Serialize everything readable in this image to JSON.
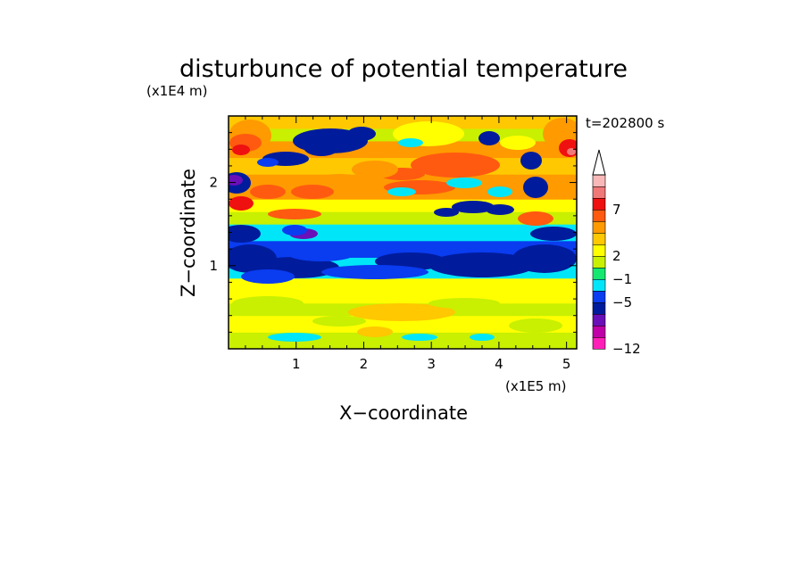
{
  "chart_data": {
    "type": "heatmap",
    "title": "disturbunce of potential temperature",
    "xlabel": "X−coordinate",
    "ylabel": "Z−coordinate",
    "x_scale_label": "(x1E5 m)",
    "y_scale_label": "(x1E4 m)",
    "time_label": "t=202800 s",
    "xlim": [
      0,
      5.15
    ],
    "ylim": [
      0,
      2.8
    ],
    "x_ticks": [
      1,
      2,
      3,
      4,
      5
    ],
    "y_ticks": [
      1,
      2
    ],
    "colorbar": {
      "tick_labels": [
        {
          "value": 7,
          "text": "7"
        },
        {
          "value": 2,
          "text": "2"
        },
        {
          "value": -1,
          "text": "−1"
        },
        {
          "value": -5,
          "text": "−5"
        },
        {
          "value": -12,
          "text": "−12"
        }
      ],
      "levels": [
        {
          "color": "#ff1fb8"
        },
        {
          "color": "#c000a8"
        },
        {
          "color": "#6a10b8"
        },
        {
          "color": "#001c9c"
        },
        {
          "color": "#0a3cf0"
        },
        {
          "color": "#00e6f8"
        },
        {
          "color": "#14e870"
        },
        {
          "color": "#c8f000"
        },
        {
          "color": "#ffff00"
        },
        {
          "color": "#ffc800"
        },
        {
          "color": "#ff9a00"
        },
        {
          "color": "#ff5a10"
        },
        {
          "color": "#ef1010"
        },
        {
          "color": "#f07878"
        },
        {
          "color": "#f8b8b8"
        }
      ],
      "extend_max": true
    },
    "bands": [
      {
        "z": [
          0.0,
          0.2
        ],
        "level": 7
      },
      {
        "z": [
          0.2,
          0.4
        ],
        "level": 8
      },
      {
        "z": [
          0.4,
          0.55
        ],
        "level": 7
      },
      {
        "z": [
          0.55,
          0.85
        ],
        "level": 8
      },
      {
        "z": [
          0.85,
          1.1
        ],
        "level": 5
      },
      {
        "z": [
          1.1,
          1.3
        ],
        "level": 4
      },
      {
        "z": [
          1.3,
          1.5
        ],
        "level": 5
      },
      {
        "z": [
          1.5,
          1.65
        ],
        "level": 7
      },
      {
        "z": [
          1.65,
          1.8
        ],
        "level": 8
      },
      {
        "z": [
          1.8,
          2.1
        ],
        "level": 10
      },
      {
        "z": [
          2.1,
          2.3
        ],
        "level": 9
      },
      {
        "z": [
          2.3,
          2.5
        ],
        "level": 10
      },
      {
        "z": [
          2.5,
          2.65
        ],
        "level": 7
      },
      {
        "z": [
          2.65,
          2.8
        ],
        "level": 9
      }
    ]
  }
}
